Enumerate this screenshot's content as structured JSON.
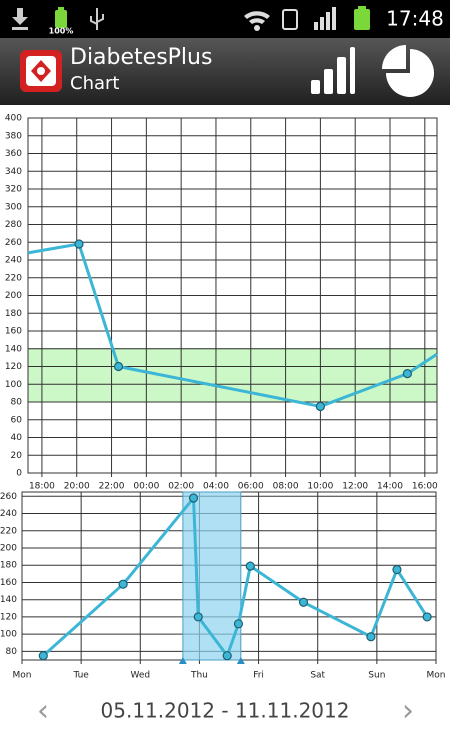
{
  "status_bar": {
    "battery_label": "100%",
    "time": "17:48"
  },
  "app_bar": {
    "title": "DiabetesPlus",
    "subtitle": "Chart"
  },
  "chart_data": [
    {
      "type": "line",
      "xlim": [
        17.2,
        40.7
      ],
      "xticks": [
        {
          "value": 18,
          "label": "18:00"
        },
        {
          "value": 20,
          "label": "20:00"
        },
        {
          "value": 22,
          "label": "22:00"
        },
        {
          "value": 24,
          "label": "00:00"
        },
        {
          "value": 26,
          "label": "02:00"
        },
        {
          "value": 28,
          "label": "04:00"
        },
        {
          "value": 30,
          "label": "06:00"
        },
        {
          "value": 32,
          "label": "08:00"
        },
        {
          "value": 34,
          "label": "10:00"
        },
        {
          "value": 36,
          "label": "12:00"
        },
        {
          "value": 38,
          "label": "14:00"
        },
        {
          "value": 40,
          "label": "16:00"
        }
      ],
      "ylim": [
        0,
        400
      ],
      "yticks": [
        0,
        20,
        40,
        60,
        80,
        100,
        120,
        140,
        160,
        180,
        200,
        220,
        240,
        260,
        280,
        300,
        320,
        340,
        360,
        380,
        400
      ],
      "grid": true,
      "target_range": [
        80,
        140
      ],
      "target_color": "#ccf7c6",
      "series": [
        {
          "color": "#3cb6d6",
          "x": [
            17.2,
            20.13,
            22.4,
            34.0,
            39.0,
            40.7
          ],
          "values": [
            248,
            258,
            120,
            75,
            112,
            134
          ]
        }
      ]
    },
    {
      "type": "line",
      "xlim": [
        0,
        7
      ],
      "xticks": [
        {
          "value": 0,
          "label": "Mon"
        },
        {
          "value": 1,
          "label": "Tue"
        },
        {
          "value": 2,
          "label": "Wed"
        },
        {
          "value": 3,
          "label": "Thu"
        },
        {
          "value": 4,
          "label": "Fri"
        },
        {
          "value": 5,
          "label": "Sat"
        },
        {
          "value": 6,
          "label": "Sun"
        },
        {
          "value": 7,
          "label": "Mon"
        }
      ],
      "ylim": [
        70,
        265
      ],
      "yticks": [
        80,
        100,
        120,
        140,
        160,
        180,
        200,
        220,
        240,
        260
      ],
      "grid": true,
      "window": [
        2.72,
        3.7
      ],
      "window_color": "#8fd3f0",
      "series": [
        {
          "color": "#3cb6d6",
          "x": [
            0.36,
            1.71,
            2.9,
            2.98,
            3.47,
            3.66,
            3.86,
            4.76,
            5.9,
            6.34,
            6.85
          ],
          "values": [
            75,
            158,
            258,
            120,
            75,
            112,
            179,
            137,
            97,
            175,
            120
          ]
        }
      ]
    }
  ],
  "date_range": {
    "label": "05.11.2012 - 11.11.2012"
  }
}
